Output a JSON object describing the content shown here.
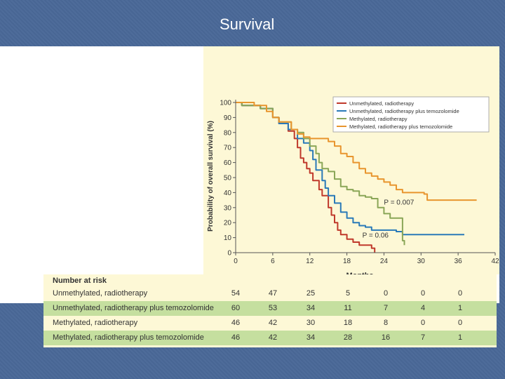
{
  "slide": {
    "title": "Survival"
  },
  "chart_data": {
    "type": "line",
    "xlabel": "Months",
    "ylabel": "Probability of overall survival (%)",
    "xlim": [
      0,
      42
    ],
    "ylim": [
      0,
      100
    ],
    "xticks": [
      "0",
      "6",
      "12",
      "18",
      "24",
      "30",
      "36",
      "42"
    ],
    "yticks": [
      "0",
      "10",
      "20",
      "30",
      "40",
      "50",
      "60",
      "70",
      "80",
      "90",
      "100"
    ],
    "legend_position": "top-right",
    "colors": {
      "unmeth_rt": "#c0392b",
      "unmeth_rt_tmz": "#2a7ab8",
      "meth_rt": "#8aa657",
      "meth_rt_tmz": "#e8952e",
      "plot_bg": "#fdf8d6"
    },
    "series": [
      {
        "name": "Unmethylated, radiotherapy",
        "color": "#c0392b",
        "points": [
          [
            0,
            100
          ],
          [
            1,
            98
          ],
          [
            4,
            96
          ],
          [
            6,
            90
          ],
          [
            7,
            86
          ],
          [
            8.5,
            81
          ],
          [
            9.5,
            76
          ],
          [
            10,
            70
          ],
          [
            10.5,
            63
          ],
          [
            11,
            60
          ],
          [
            11.5,
            56
          ],
          [
            12,
            53
          ],
          [
            12.5,
            48
          ],
          [
            13.5,
            42
          ],
          [
            14,
            38
          ],
          [
            15,
            30
          ],
          [
            15.5,
            25
          ],
          [
            16,
            20
          ],
          [
            16.5,
            15
          ],
          [
            17,
            12
          ],
          [
            18,
            9
          ],
          [
            19,
            7
          ],
          [
            20,
            5
          ],
          [
            21,
            5
          ],
          [
            22,
            3
          ],
          [
            22.5,
            0
          ]
        ]
      },
      {
        "name": "Unmethylated, radiotherapy plus temozolomide",
        "color": "#2a7ab8",
        "points": [
          [
            0,
            100
          ],
          [
            1,
            98
          ],
          [
            4,
            96
          ],
          [
            6,
            90
          ],
          [
            7,
            86
          ],
          [
            8.5,
            82
          ],
          [
            10,
            76
          ],
          [
            11,
            73
          ],
          [
            12,
            68
          ],
          [
            12.5,
            62
          ],
          [
            13,
            55
          ],
          [
            14,
            48
          ],
          [
            14.5,
            43
          ],
          [
            15,
            38
          ],
          [
            16,
            33
          ],
          [
            17,
            27
          ],
          [
            18,
            23
          ],
          [
            19,
            20
          ],
          [
            20,
            18
          ],
          [
            21,
            17
          ],
          [
            22,
            15
          ],
          [
            24,
            15
          ],
          [
            26,
            14
          ],
          [
            27,
            12
          ],
          [
            30,
            12
          ],
          [
            36,
            12
          ],
          [
            37,
            12
          ]
        ]
      },
      {
        "name": "Methylated, radiotherapy",
        "color": "#8aa657",
        "points": [
          [
            0,
            100
          ],
          [
            1,
            98
          ],
          [
            4,
            96
          ],
          [
            6,
            90
          ],
          [
            7,
            87
          ],
          [
            9,
            82
          ],
          [
            10,
            80
          ],
          [
            11,
            76
          ],
          [
            12,
            71
          ],
          [
            13,
            66
          ],
          [
            13.5,
            60
          ],
          [
            14,
            56
          ],
          [
            15,
            54
          ],
          [
            16,
            49
          ],
          [
            17,
            44
          ],
          [
            18,
            42
          ],
          [
            19,
            41
          ],
          [
            20,
            38
          ],
          [
            21,
            37
          ],
          [
            22,
            36
          ],
          [
            23,
            30
          ],
          [
            24,
            26
          ],
          [
            25,
            23
          ],
          [
            26,
            23
          ],
          [
            26.5,
            23
          ],
          [
            27,
            8
          ],
          [
            27.3,
            5
          ]
        ]
      },
      {
        "name": "Methylated, radiotherapy plus temozolomide",
        "color": "#e8952e",
        "points": [
          [
            0,
            100
          ],
          [
            2,
            100
          ],
          [
            3,
            98
          ],
          [
            5,
            94
          ],
          [
            6,
            90
          ],
          [
            7,
            87
          ],
          [
            9,
            82
          ],
          [
            10,
            79
          ],
          [
            11,
            77
          ],
          [
            12,
            76
          ],
          [
            14,
            76
          ],
          [
            15,
            74
          ],
          [
            16,
            71
          ],
          [
            17,
            66
          ],
          [
            18,
            64
          ],
          [
            19,
            60
          ],
          [
            20,
            56
          ],
          [
            21,
            53
          ],
          [
            22,
            51
          ],
          [
            23,
            49
          ],
          [
            24,
            47
          ],
          [
            25,
            45
          ],
          [
            26,
            42
          ],
          [
            27,
            40
          ],
          [
            30,
            40
          ],
          [
            30.5,
            39
          ],
          [
            31,
            35
          ],
          [
            36,
            35
          ],
          [
            38,
            35
          ],
          [
            39,
            35
          ]
        ]
      }
    ],
    "annotations": [
      {
        "text": "P = 0.007",
        "x": 24,
        "y": 32
      },
      {
        "text": "P = 0.06",
        "x": 20.5,
        "y": 10
      }
    ]
  },
  "risk_table": {
    "title": "Number at risk",
    "times": [
      "0",
      "6",
      "12",
      "18",
      "24",
      "30",
      "36"
    ],
    "rows": [
      {
        "label": "Unmethylated, radiotherapy",
        "values": [
          "54",
          "47",
          "25",
          "5",
          "0",
          "0",
          "0"
        ]
      },
      {
        "label": "Unmethylated, radiotherapy plus temozolomide",
        "values": [
          "60",
          "53",
          "34",
          "11",
          "7",
          "4",
          "1"
        ]
      },
      {
        "label": "Methylated, radiotherapy",
        "values": [
          "46",
          "42",
          "30",
          "18",
          "8",
          "0",
          "0"
        ]
      },
      {
        "label": "Methylated, radiotherapy plus temozolomide",
        "values": [
          "46",
          "42",
          "34",
          "28",
          "16",
          "7",
          "1"
        ]
      }
    ]
  }
}
